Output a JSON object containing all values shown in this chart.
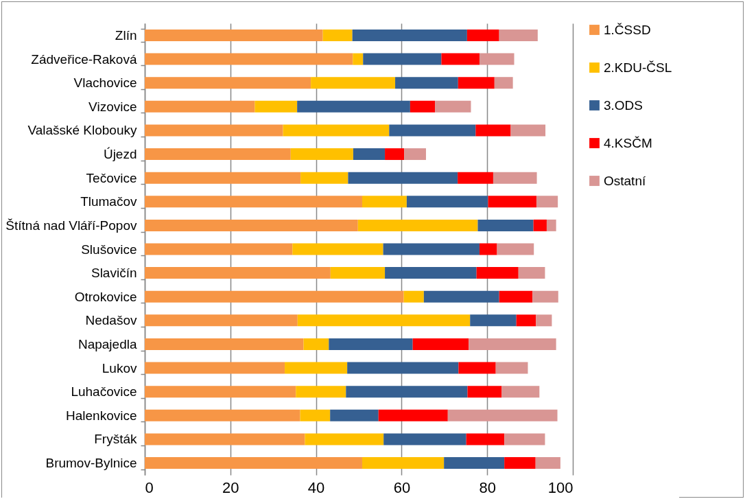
{
  "chart_data": {
    "type": "bar",
    "orientation": "horizontal",
    "stacked": true,
    "categories": [
      "Zlín",
      "Zádveřice-Raková",
      "Vlachovice",
      "Vizovice",
      "Valašské Klobouky",
      "Újezd",
      "Tečovice",
      "Tlumačov",
      "Štítná nad Vláří-Popov",
      "Slušovice",
      "Slavičín",
      "Otrokovice",
      "Nedašov",
      "Napajedla",
      "Lukov",
      "Luhačovice",
      "Halenkovice",
      "Fryšták",
      "Brumov-Bylnice"
    ],
    "series": [
      {
        "name": "1.ČSSD",
        "color": "#f79646",
        "values": [
          41.6,
          48.6,
          38.8,
          25.7,
          32.3,
          34.1,
          36.4,
          50.8,
          49.8,
          34.5,
          43.4,
          60.5,
          35.7,
          37.1,
          32.7,
          35.3,
          36.3,
          37.4,
          50.8
        ]
      },
      {
        "name": "2.KDU-ČSL",
        "color": "#ffc000",
        "values": [
          6.9,
          2.4,
          19.7,
          9.9,
          24.8,
          14.6,
          11.1,
          10.4,
          28.0,
          21.2,
          12.7,
          4.7,
          40.3,
          5.9,
          14.6,
          11.7,
          7.0,
          18.4,
          19.1
        ]
      },
      {
        "name": "3.ODS",
        "color": "#366092",
        "values": [
          26.8,
          18.3,
          14.7,
          26.4,
          20.2,
          7.4,
          25.6,
          19.0,
          13.0,
          22.5,
          21.4,
          17.6,
          10.8,
          19.6,
          26.0,
          28.4,
          11.3,
          19.3,
          14.1
        ]
      },
      {
        "name": "4.KSČM",
        "color": "#ff0000",
        "values": [
          7.5,
          8.9,
          8.5,
          5.8,
          8.2,
          4.5,
          8.3,
          11.3,
          3.1,
          4.1,
          9.8,
          7.8,
          4.6,
          13.1,
          8.7,
          8.0,
          16.2,
          8.9,
          7.3
        ]
      },
      {
        "name": "Ostatní",
        "color": "#d99694",
        "values": [
          9.0,
          8.1,
          4.3,
          8.4,
          8.1,
          5.1,
          10.2,
          5.0,
          2.2,
          8.6,
          6.2,
          6.0,
          3.7,
          20.4,
          7.5,
          8.8,
          25.6,
          9.5,
          5.8
        ]
      }
    ],
    "xlim": [
      0,
      100
    ],
    "xticks": [
      0,
      20,
      40,
      60,
      80,
      100
    ],
    "grid": "x",
    "legend": "right"
  }
}
